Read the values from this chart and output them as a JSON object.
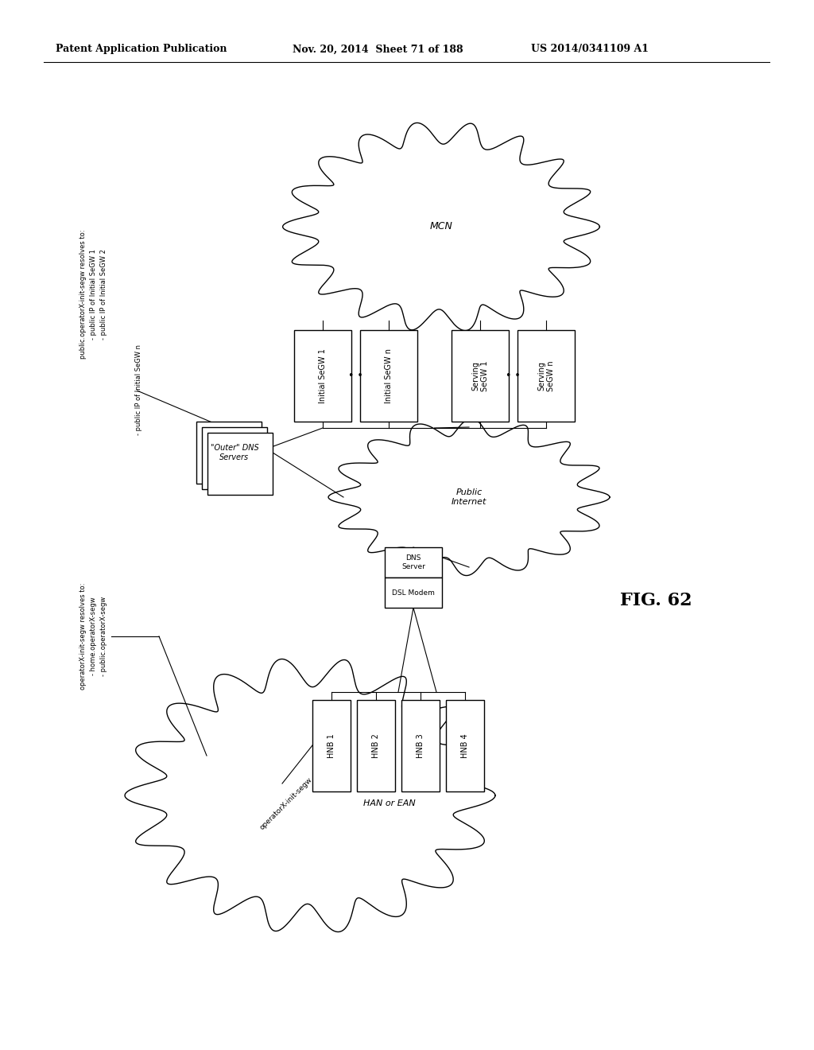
{
  "header_left": "Patent Application Publication",
  "header_mid": "Nov. 20, 2014  Sheet 71 of 188",
  "header_right": "US 2014/0341109 A1",
  "fig_label": "FIG. 62",
  "bg_color": "#ffffff",
  "line_color": "#000000",
  "mcn_label": "MCN",
  "pi_label": "Public\nInternet",
  "han_label": "HAN or EAN",
  "dns_outer_label": "\"Outer\" DNS\nServers",
  "dns_server_label": "DNS\nServer",
  "dsl_modem_label": "DSL Modem",
  "segw_boxes": [
    "Initial SeGW 1",
    "Initial SeGW n",
    "Serving\nSeGW 1",
    "Serving\nSeGW n"
  ],
  "hnb_labels": [
    "HNB 1",
    "HNB 2",
    "HNB 3",
    "HNB 4"
  ],
  "init_segw_label": "operatorX-init-segw",
  "top_ann_line0": "public.operatorX-init-segw resolves to:",
  "top_ann_line1": "- public IP of Initial SeGW 1",
  "top_ann_line2": "- public IP of Initial SeGW 2",
  "top_ann_line3": "- public IP of Initial SeGW n",
  "bot_ann_line0": "operatorX-init-segw resolves to:",
  "bot_ann_line1": "- home.operatorX-segw",
  "bot_ann_line2": "- public.operatorX-segw"
}
